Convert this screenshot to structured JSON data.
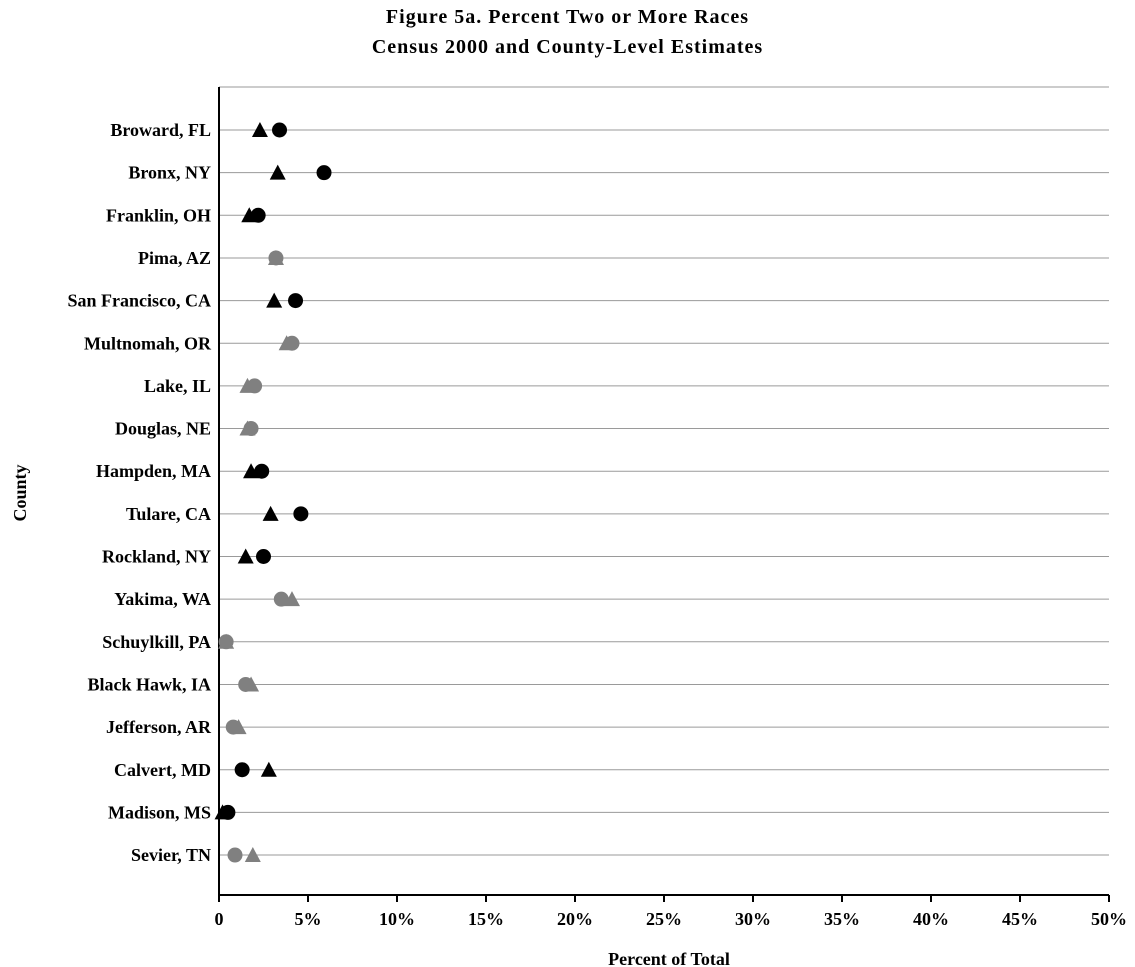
{
  "chart_data": {
    "type": "scatter",
    "title": "Figure 5a.  Percent Two or More Races",
    "subtitle": "Census 2000 and County-Level Estimates",
    "xlabel": "Percent of Total",
    "ylabel": "County",
    "xlim": [
      0,
      50
    ],
    "x_ticks": [
      "0",
      "5%",
      "10%",
      "15%",
      "20%",
      "25%",
      "30%",
      "35%",
      "40%",
      "45%",
      "50%"
    ],
    "grid": "horizontal",
    "categories": [
      "Broward, FL",
      "Bronx, NY",
      "Franklin, OH",
      "Pima, AZ",
      "San Francisco, CA",
      "Multnomah, OR",
      "Lake, IL",
      "Douglas, NE",
      "Hampden, MA",
      "Tulare, CA",
      "Rockland, NY",
      "Yakima, WA",
      "Schuylkill, PA",
      "Black Hawk, IA",
      "Jefferson, AR",
      "Calvert, MD",
      "Madison, MS",
      "Sevier, TN"
    ],
    "colors": {
      "black": "#000000",
      "gray": "#808080"
    },
    "series": [
      {
        "marker": "triangle",
        "values": [
          2.3,
          3.3,
          1.7,
          3.2,
          3.1,
          3.8,
          1.6,
          1.6,
          1.8,
          2.9,
          1.5,
          4.1,
          0.4,
          1.8,
          1.1,
          2.8,
          0.2,
          1.9
        ],
        "colors": [
          "black",
          "black",
          "black",
          "gray",
          "black",
          "gray",
          "gray",
          "gray",
          "black",
          "black",
          "black",
          "gray",
          "gray",
          "gray",
          "gray",
          "black",
          "black",
          "gray"
        ]
      },
      {
        "marker": "circle",
        "values": [
          3.4,
          5.9,
          2.2,
          3.2,
          4.3,
          4.1,
          2.0,
          1.8,
          2.4,
          4.6,
          2.5,
          3.5,
          0.4,
          1.5,
          0.8,
          1.3,
          0.5,
          0.9
        ],
        "colors": [
          "black",
          "black",
          "black",
          "gray",
          "black",
          "gray",
          "gray",
          "gray",
          "black",
          "black",
          "black",
          "gray",
          "gray",
          "gray",
          "gray",
          "black",
          "black",
          "gray"
        ]
      }
    ]
  }
}
